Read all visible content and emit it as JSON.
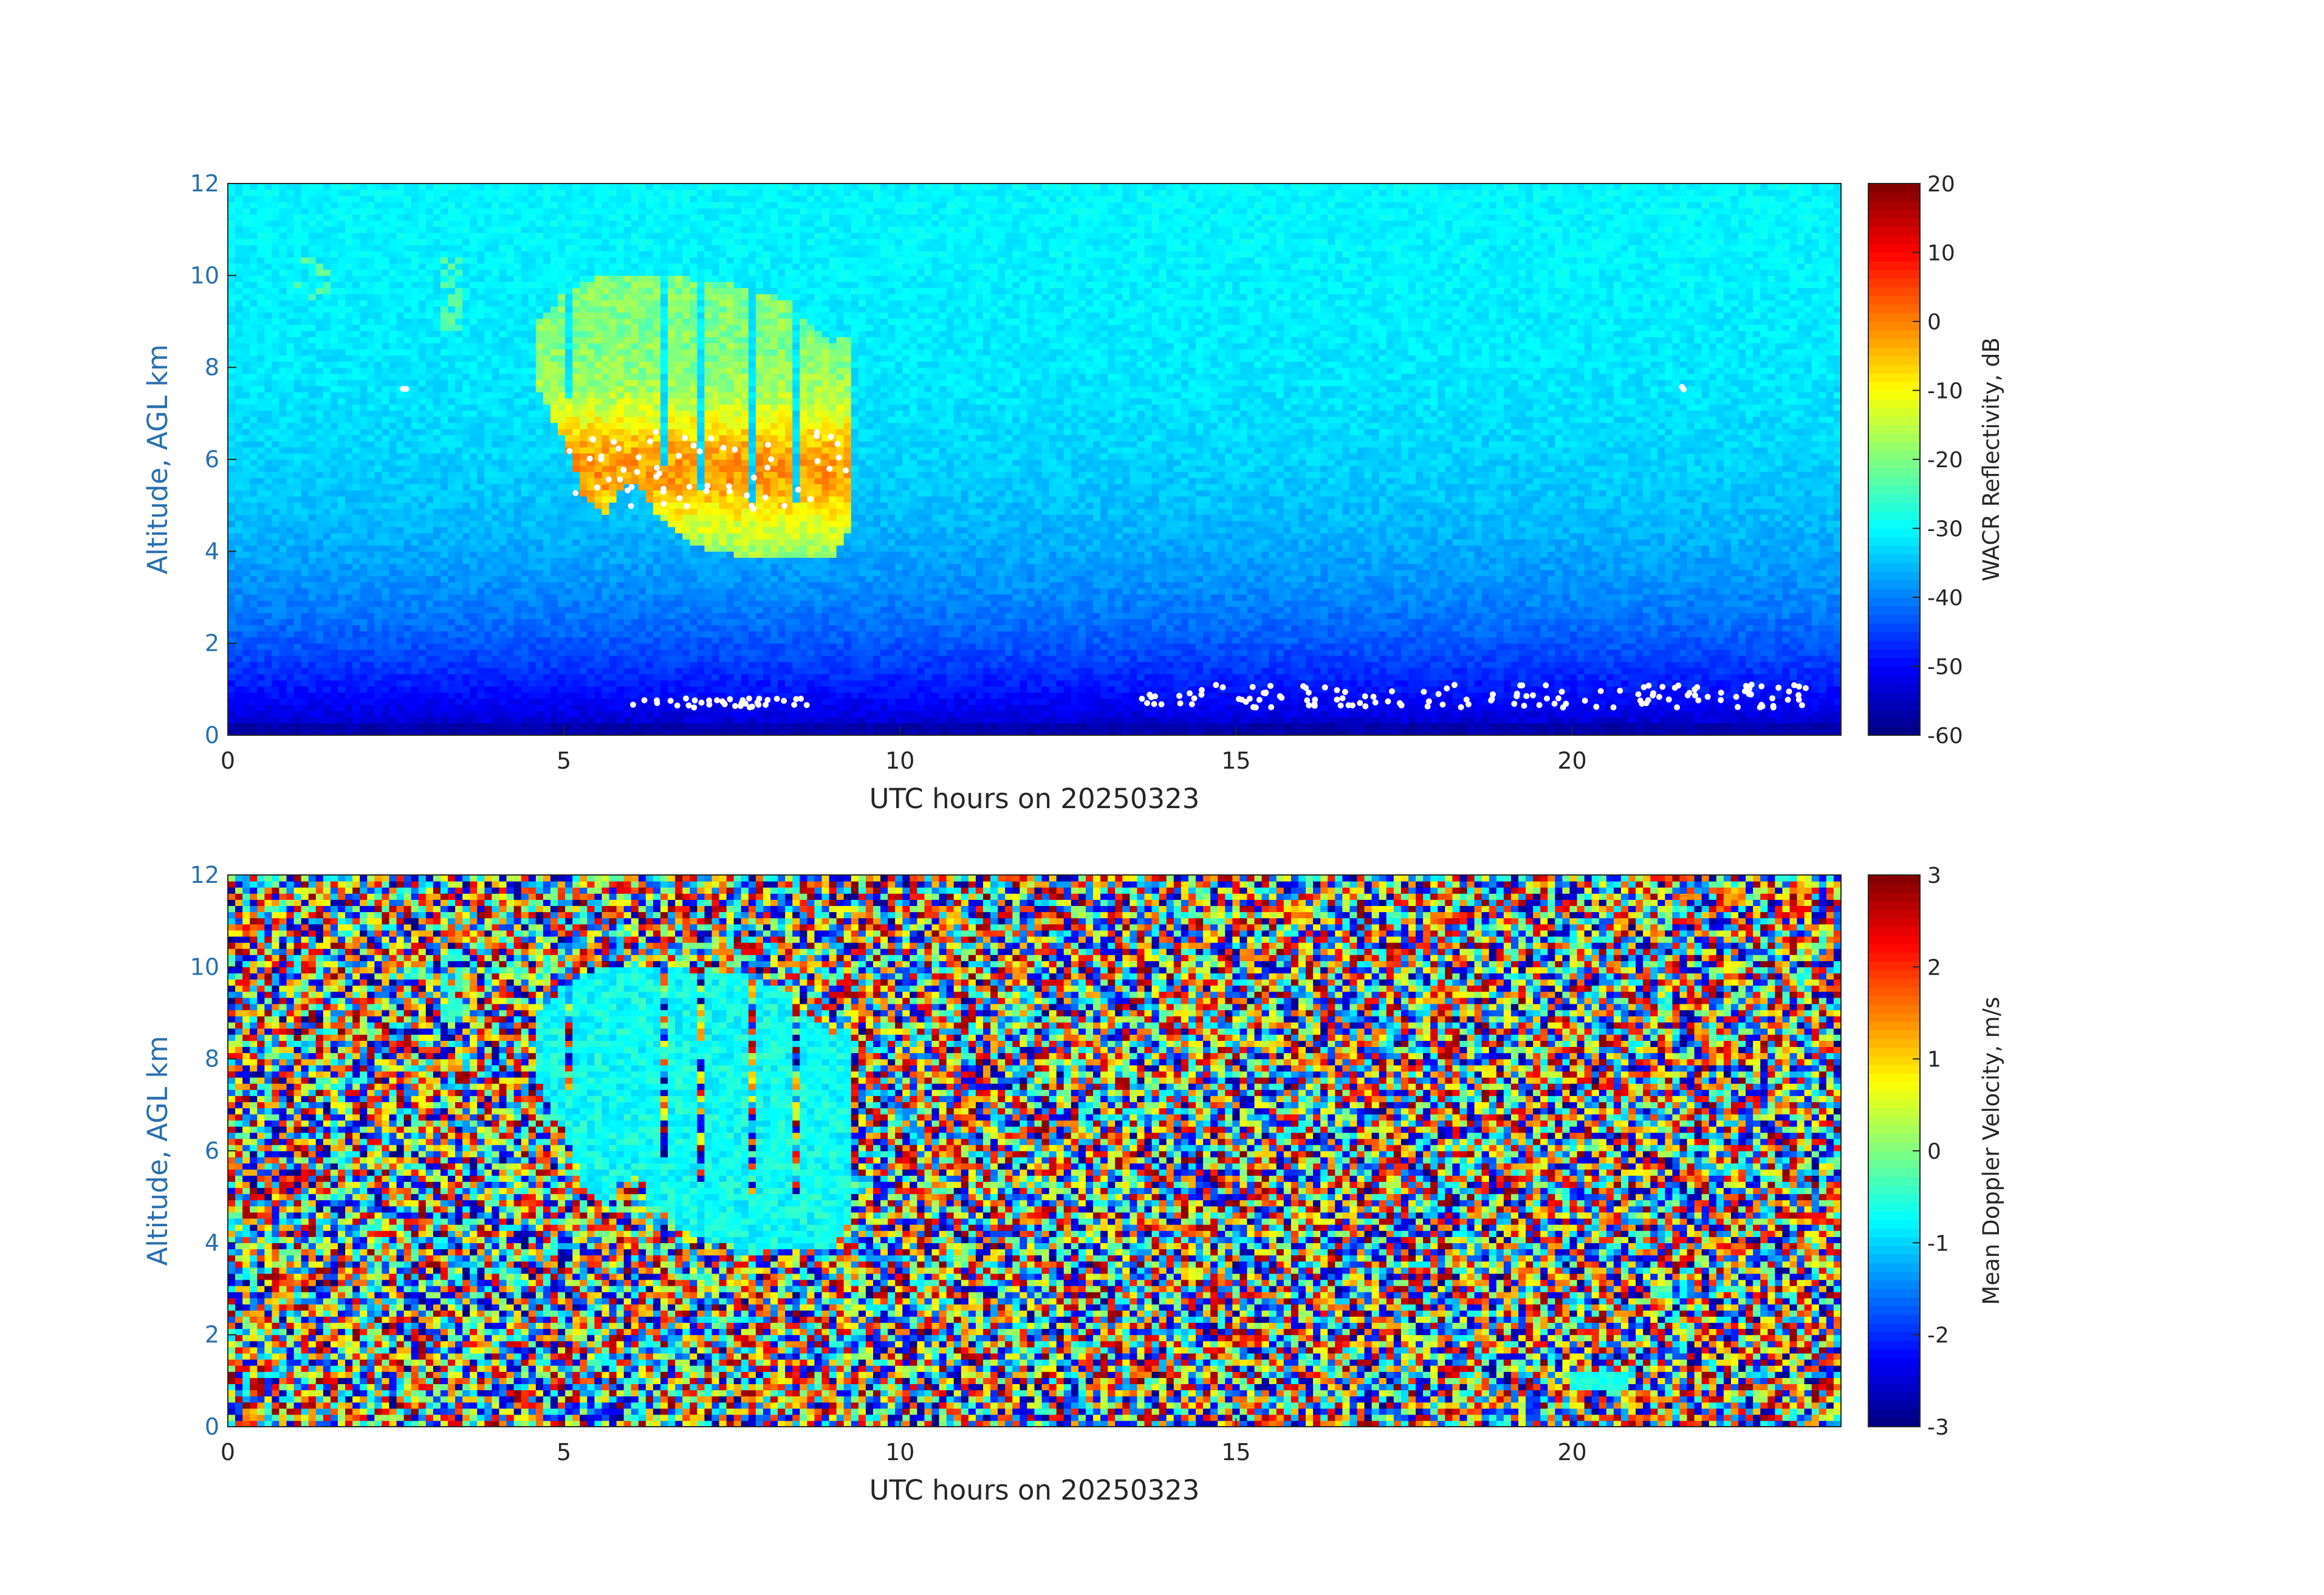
{
  "chart_data": [
    {
      "type": "heatmap",
      "variable": "reflectivity",
      "xlabel": "UTC hours on 20250323",
      "ylabel": "Altitude, AGL km",
      "xlim": [
        0,
        24
      ],
      "ylim": [
        0,
        12
      ],
      "xticks": [
        0,
        5,
        10,
        15,
        20
      ],
      "yticks": [
        0,
        2,
        4,
        6,
        8,
        10,
        12
      ],
      "grid": false,
      "colorbar": {
        "label": "WACR Reflectivity, dB",
        "range": [
          -60,
          20
        ],
        "ticks": [
          -60,
          -50,
          -40,
          -30,
          -20,
          -10,
          0,
          10,
          20
        ],
        "colormap": "jet"
      },
      "background": "noise floor increasing with altitude, about -55 dB near 0 km to about -30 dB at 12 km",
      "features": [
        {
          "name": "main cloud",
          "x_range": [
            4.6,
            9.3
          ],
          "y_range": [
            3.8,
            10.1
          ],
          "value_range": [
            -25,
            0
          ],
          "core_value": 0
        },
        {
          "name": "high cloud fragment",
          "x_range": [
            3.2,
            3.5
          ],
          "y_range": [
            8.8,
            10.4
          ],
          "value_range": [
            -25,
            -20
          ]
        },
        {
          "name": "high cloud fragment",
          "x_range": [
            1.0,
            1.5
          ],
          "y_range": [
            9.5,
            10.4
          ],
          "value_range": [
            -25,
            -20
          ]
        }
      ],
      "white_markers": [
        {
          "x_range": [
            5.0,
            9.2
          ],
          "y_range": [
            4.9,
            6.6
          ]
        },
        {
          "x_range": [
            6.0,
            8.7
          ],
          "y_range": [
            0.6,
            0.8
          ]
        },
        {
          "x_range": [
            13.6,
            23.5
          ],
          "y_range": [
            0.6,
            1.1
          ]
        },
        {
          "x_range": [
            2.6,
            2.7
          ],
          "y_range": [
            7.5,
            7.6
          ]
        },
        {
          "x_range": [
            21.6,
            21.7
          ],
          "y_range": [
            7.5,
            7.6
          ]
        }
      ]
    },
    {
      "type": "heatmap",
      "variable": "velocity",
      "xlabel": "UTC hours on 20250323",
      "ylabel": "Altitude, AGL km",
      "xlim": [
        0,
        24
      ],
      "ylim": [
        0,
        12
      ],
      "xticks": [
        0,
        5,
        10,
        15,
        20
      ],
      "yticks": [
        0,
        2,
        4,
        6,
        8,
        10,
        12
      ],
      "grid": false,
      "colorbar": {
        "label": "Mean Doppler Velocity, m/s",
        "range": [
          -3,
          3
        ],
        "ticks": [
          -3,
          -2,
          -1,
          0,
          1,
          2,
          3
        ],
        "colormap": "jet"
      },
      "background": "random noise across full range -3 to 3 m/s",
      "features": [
        {
          "name": "main cloud",
          "x_range": [
            4.6,
            9.3
          ],
          "y_range": [
            3.8,
            10.3
          ],
          "value_range": [
            -1.2,
            -0.3
          ]
        },
        {
          "name": "high cloud fragment",
          "x_range": [
            3.0,
            3.5
          ],
          "y_range": [
            8.5,
            10.4
          ],
          "value_range": [
            -0.8,
            -0.3
          ]
        },
        {
          "name": "high cloud fragment",
          "x_range": [
            1.0,
            1.5
          ],
          "y_range": [
            9.7,
            10.3
          ],
          "value_range": [
            -0.5,
            0
          ]
        },
        {
          "name": "low return",
          "x_range": [
            20.0,
            20.8
          ],
          "y_range": [
            0.8,
            1.2
          ],
          "value_range": [
            -0.8,
            -0.4
          ]
        }
      ]
    }
  ]
}
